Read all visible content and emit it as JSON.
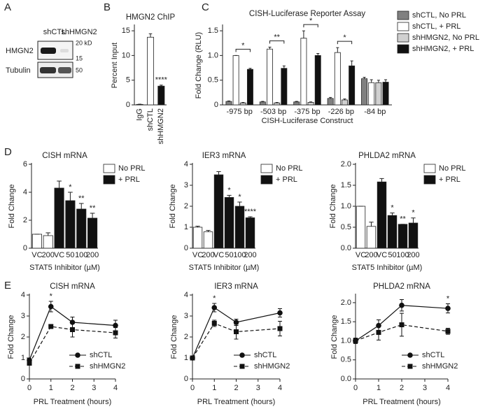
{
  "panel_labels": [
    "A",
    "B",
    "C",
    "D",
    "E"
  ],
  "blot": {
    "lanes": [
      "shCTL",
      "shHMGN2"
    ],
    "rows": [
      "HMGN2",
      "Tubulin"
    ],
    "markers": [
      "20 kD",
      "15",
      "50"
    ]
  },
  "chart_data": [
    {
      "type": "bar",
      "title": "HMGN2 ChIP",
      "ylabel": "Percent Input",
      "categories": [
        "IgG",
        "shCTL",
        "shHMGN2"
      ],
      "values": [
        0.1,
        13.7,
        3.8
      ],
      "errors": [
        0.05,
        0.7,
        0.2
      ],
      "colors": [
        "#ffffff",
        "#ffffff",
        "#111111"
      ],
      "significance": [
        null,
        null,
        "****"
      ],
      "ylim": [
        0,
        16
      ],
      "yticks": [
        0,
        5,
        10,
        15
      ],
      "rotate_labels": true
    },
    {
      "type": "bar",
      "title": "CISH-Luciferase Reporter Assay",
      "ylabel": "Fold Change (RLU)",
      "xlabel": "CISH-Luciferase Construct",
      "categories": [
        "-975 bp",
        "-503 bp",
        "-375 bp",
        "-226 bp",
        "-84 bp"
      ],
      "series": [
        {
          "name": "shCTL, No PRL",
          "color": "#808080",
          "values": [
            0.07,
            0.06,
            0.06,
            0.13,
            0.53
          ],
          "errors": [
            0.01,
            0.01,
            0.01,
            0.02,
            0.03
          ]
        },
        {
          "name": "shCTL, + PRL",
          "color": "#ffffff",
          "values": [
            1.0,
            1.13,
            1.35,
            1.06,
            0.45
          ],
          "errors": [
            0.0,
            0.04,
            0.15,
            0.1,
            0.06
          ]
        },
        {
          "name": "shHMGN2, No PRL",
          "color": "#d0d0d0",
          "values": [
            0.04,
            0.04,
            0.05,
            0.1,
            0.45
          ],
          "errors": [
            0.01,
            0.01,
            0.01,
            0.02,
            0.05
          ]
        },
        {
          "name": "shHMGN2, + PRL",
          "color": "#111111",
          "values": [
            0.72,
            0.74,
            1.0,
            0.79,
            0.46
          ],
          "errors": [
            0.02,
            0.05,
            0.04,
            0.1,
            0.05
          ]
        }
      ],
      "significance": [
        "*",
        "**",
        "*",
        "*",
        null
      ],
      "bracket": true,
      "ylim": [
        0,
        1.6
      ],
      "yticks": [
        0,
        0.5,
        {
          "value": 1.0,
          "label": "1.0"
        },
        1.5
      ],
      "legend": "right"
    },
    {
      "type": "bar",
      "title": "CISH mRNA",
      "ylabel": "Fold Change",
      "xlabel": "STAT5 Inhibitor (µM)",
      "categories": [
        "VC",
        "200",
        "VC",
        "50",
        "100",
        "200"
      ],
      "series": [
        {
          "name": "No PRL",
          "color": "#ffffff",
          "values": [
            1.0,
            0.9,
            null,
            null,
            null,
            null
          ],
          "errors": [
            0.0,
            0.2,
            null,
            null,
            null,
            null
          ]
        },
        {
          "name": "+ PRL",
          "color": "#111111",
          "values": [
            null,
            null,
            4.3,
            3.4,
            2.8,
            2.15
          ],
          "errors": [
            null,
            null,
            0.5,
            0.6,
            0.4,
            0.35
          ]
        }
      ],
      "significance": [
        null,
        null,
        null,
        "*",
        "**",
        "**"
      ],
      "ylim": [
        0,
        6
      ],
      "yticks": [
        0,
        2,
        4,
        6
      ],
      "legend": "right"
    },
    {
      "type": "bar",
      "title": "IER3 mRNA",
      "ylabel": "Fold Change",
      "xlabel": "STAT5 Inhibitor (µM)",
      "categories": [
        "VC",
        "200",
        "VC",
        "50",
        "100",
        "200"
      ],
      "series": [
        {
          "name": "No PRL",
          "color": "#ffffff",
          "values": [
            1.0,
            0.78,
            null,
            null,
            null,
            null
          ],
          "errors": [
            0.05,
            0.07,
            null,
            null,
            null,
            null
          ]
        },
        {
          "name": "+ PRL",
          "color": "#111111",
          "values": [
            null,
            null,
            3.5,
            2.42,
            2.0,
            1.45
          ],
          "errors": [
            null,
            null,
            0.15,
            0.1,
            0.2,
            0.05
          ]
        }
      ],
      "significance": [
        null,
        null,
        null,
        "*",
        "*",
        "****"
      ],
      "ylim": [
        0,
        4
      ],
      "yticks": [
        0,
        1,
        2,
        3,
        4
      ],
      "legend": "right"
    },
    {
      "type": "bar",
      "title": "PHLDA2 mRNA",
      "ylabel": "Fold Change",
      "xlabel": "STAT5 Inhibitor (µM)",
      "categories": [
        "VC",
        "200",
        "VC",
        "50",
        "100",
        "200"
      ],
      "series": [
        {
          "name": "No PRL",
          "color": "#ffffff",
          "values": [
            1.0,
            0.52,
            null,
            null,
            null,
            null
          ],
          "errors": [
            0.0,
            0.1,
            null,
            null,
            null,
            null
          ]
        },
        {
          "name": "+ PRL",
          "color": "#111111",
          "values": [
            null,
            null,
            1.58,
            0.78,
            0.57,
            0.6
          ],
          "errors": [
            null,
            null,
            0.08,
            0.06,
            0.0,
            0.12
          ]
        }
      ],
      "significance": [
        null,
        null,
        null,
        "*",
        "**",
        "*"
      ],
      "ylim": [
        0,
        2.0
      ],
      "yticks": [
        {
          "value": 0,
          "label": "0.0"
        },
        0.5,
        {
          "value": 1.0,
          "label": "1.0"
        },
        1.5,
        {
          "value": 2.0,
          "label": "2.0"
        }
      ],
      "legend": "right"
    },
    {
      "type": "line",
      "title": "CISH mRNA",
      "ylabel": "Fold Change",
      "xlabel": "PRL Treatment (hours)",
      "x": [
        0,
        1,
        2,
        4
      ],
      "series": [
        {
          "name": "shCTL",
          "color": "#111111",
          "marker": "circle",
          "dashed": false,
          "values": [
            0.9,
            3.45,
            2.7,
            2.55
          ],
          "errors": [
            0.05,
            0.25,
            0.25,
            0.25
          ]
        },
        {
          "name": "shHMGN2",
          "color": "#111111",
          "marker": "square",
          "dashed": true,
          "values": [
            0.75,
            2.5,
            2.35,
            2.2
          ],
          "errors": [
            0.05,
            0.05,
            0.35,
            0.25
          ]
        }
      ],
      "significance": [
        null,
        "*",
        null,
        null
      ],
      "xlim": [
        0,
        4
      ],
      "xticks": [
        0,
        1,
        2,
        3,
        4
      ],
      "ylim": [
        0,
        4
      ],
      "yticks": [
        0,
        1,
        2,
        3,
        4
      ],
      "legend": "lower right"
    },
    {
      "type": "line",
      "title": "IER3 mRNA",
      "ylabel": "Fold Change",
      "xlabel": "PRL Treatment (hours)",
      "x": [
        0,
        1,
        2,
        4
      ],
      "series": [
        {
          "name": "shCTL",
          "color": "#111111",
          "marker": "circle",
          "dashed": false,
          "values": [
            1.0,
            3.4,
            2.7,
            3.15
          ],
          "errors": [
            0.05,
            0.2,
            0.15,
            0.2
          ]
        },
        {
          "name": "shHMGN2",
          "color": "#111111",
          "marker": "square",
          "dashed": true,
          "values": [
            1.0,
            2.65,
            2.25,
            2.4
          ],
          "errors": [
            0.05,
            0.15,
            0.35,
            0.35
          ]
        }
      ],
      "significance": [
        null,
        "*",
        null,
        null
      ],
      "xlim": [
        0,
        4
      ],
      "xticks": [
        0,
        1,
        2,
        3,
        4
      ],
      "ylim": [
        0,
        4
      ],
      "yticks": [
        0,
        1,
        2,
        3,
        4
      ],
      "legend": "lower right"
    },
    {
      "type": "line",
      "title": "PHLDA2 mRNA",
      "ylabel": "Fold Change",
      "xlabel": "PRL Treatment (hours)",
      "x": [
        0,
        1,
        2,
        4
      ],
      "series": [
        {
          "name": "shCTL",
          "color": "#111111",
          "marker": "circle",
          "dashed": false,
          "values": [
            1.0,
            1.4,
            1.93,
            1.85
          ],
          "errors": [
            0.07,
            0.15,
            0.15,
            0.12
          ]
        },
        {
          "name": "shHMGN2",
          "color": "#111111",
          "marker": "square",
          "dashed": true,
          "values": [
            1.0,
            1.22,
            1.42,
            1.25
          ],
          "errors": [
            0.07,
            0.2,
            0.3,
            0.08
          ]
        }
      ],
      "significance": [
        null,
        null,
        null,
        "*"
      ],
      "xlim": [
        0,
        4
      ],
      "xticks": [
        0,
        1,
        2,
        3,
        4
      ],
      "ylim": [
        0,
        2.2
      ],
      "yticks": [
        {
          "value": 0,
          "label": "0.0"
        },
        0.5,
        {
          "value": 1.0,
          "label": "1.0"
        },
        1.5,
        {
          "value": 2.0,
          "label": "2.0"
        }
      ],
      "legend": "lower right"
    }
  ]
}
